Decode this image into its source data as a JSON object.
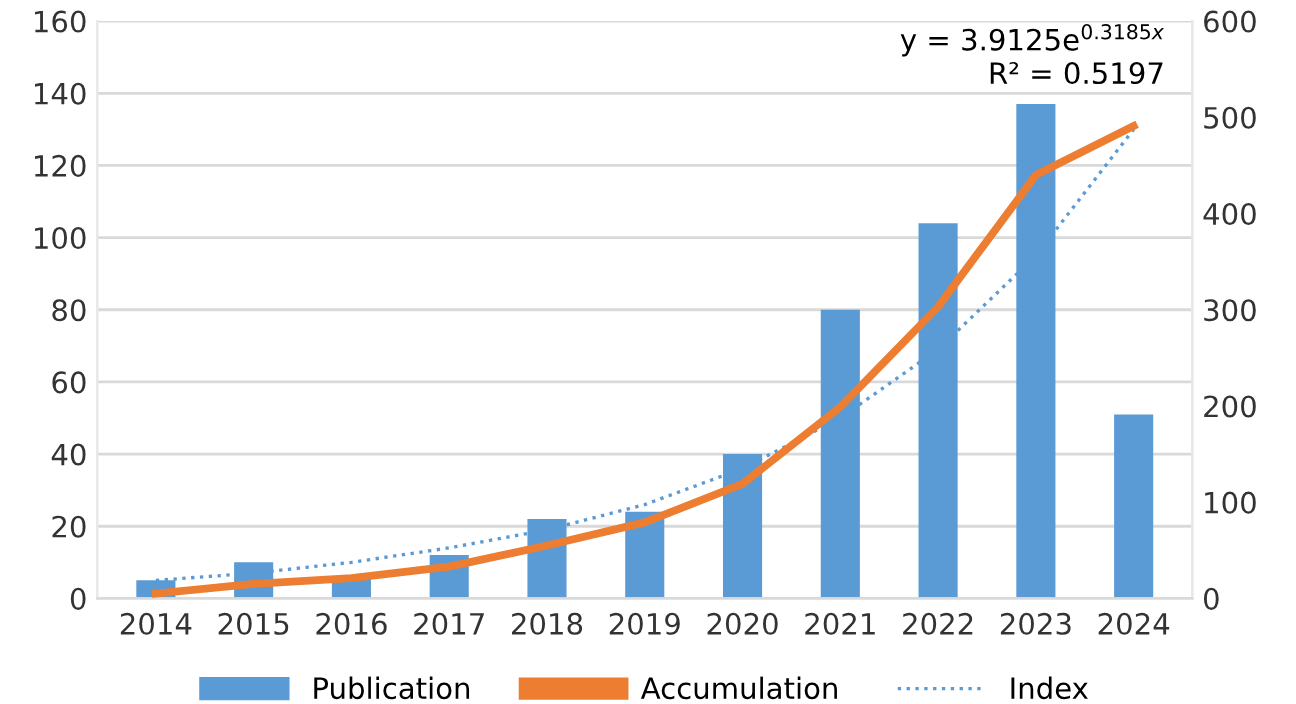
{
  "chart_data": {
    "type": "bar",
    "categories": [
      "2014",
      "2015",
      "2016",
      "2017",
      "2018",
      "2019",
      "2020",
      "2021",
      "2022",
      "2023",
      "2024"
    ],
    "series": [
      {
        "name": "Publication",
        "color": "#5b9bd5",
        "values": [
          5,
          10,
          6,
          12,
          22,
          24,
          40,
          80,
          104,
          137,
          51
        ]
      },
      {
        "name": "Accumulation",
        "type": "line",
        "axis": "y2",
        "color": "#ed7d31",
        "line_style": "solid",
        "values": [
          5,
          15,
          21,
          33,
          55,
          79,
          119,
          199,
          303,
          440,
          491
        ]
      },
      {
        "name": "Index",
        "type": "line",
        "color": "#5b9bd5",
        "line_style": "dotted",
        "values": [
          5,
          7,
          10,
          14,
          19,
          26,
          36,
          50,
          69,
          95,
          130
        ]
      }
    ],
    "ylim": [
      0,
      160
    ],
    "yticks": [
      0,
      20,
      40,
      60,
      80,
      100,
      120,
      140,
      160
    ],
    "y2lim": [
      0,
      600
    ],
    "y2ticks": [
      0,
      100,
      200,
      300,
      400,
      500,
      600
    ],
    "annotations": [
      "y = 3.9125e$^{0.3185x}$",
      "R² = 0.5197"
    ],
    "grid": "y",
    "legend": "bottom"
  }
}
